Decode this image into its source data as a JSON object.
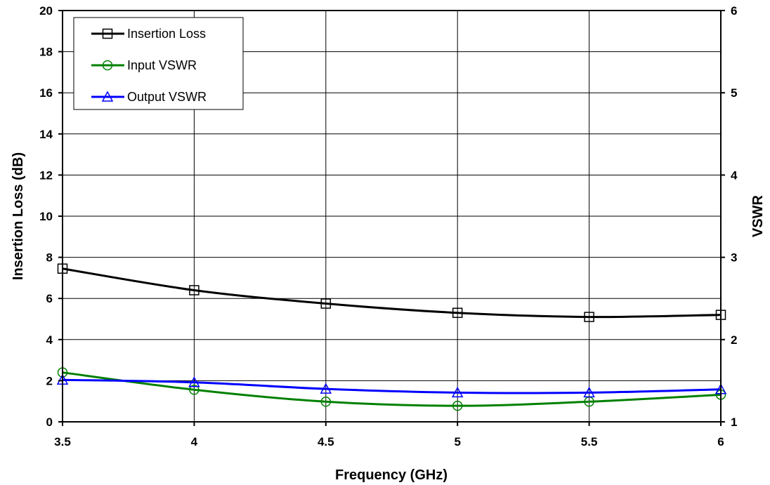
{
  "chart_data": {
    "type": "line",
    "title": "",
    "xlabel": "Frequency (GHz)",
    "ylabel": "Insertion Loss (dB)",
    "y2label": "VSWR",
    "xlim": [
      3.5,
      6
    ],
    "ylim": [
      0,
      20
    ],
    "y2lim": [
      1,
      6
    ],
    "x_ticks": [
      "3.5",
      "4",
      "4.5",
      "5",
      "5.5",
      "6"
    ],
    "y_ticks": [
      "0",
      "2",
      "4",
      "6",
      "8",
      "10",
      "12",
      "14",
      "16",
      "18",
      "20"
    ],
    "y2_ticks": [
      "1",
      "2",
      "3",
      "4",
      "5",
      "6"
    ],
    "grid": true,
    "legend_position": "top-left",
    "x": [
      3.5,
      4,
      4.5,
      5,
      5.5,
      6
    ],
    "series": [
      {
        "name": "Insertion Loss",
        "axis": "left",
        "color": "#000000",
        "marker": "square",
        "values": [
          7.45,
          6.4,
          5.75,
          5.3,
          5.1,
          5.2
        ]
      },
      {
        "name": "Input VSWR",
        "axis": "right",
        "color": "#008000",
        "marker": "circle",
        "values": [
          1.6,
          1.39,
          1.245,
          1.195,
          1.245,
          1.33
        ]
      },
      {
        "name": "Output VSWR",
        "axis": "right",
        "color": "#0000ff",
        "marker": "triangle",
        "values": [
          1.51,
          1.48,
          1.4,
          1.355,
          1.355,
          1.395
        ]
      }
    ]
  }
}
